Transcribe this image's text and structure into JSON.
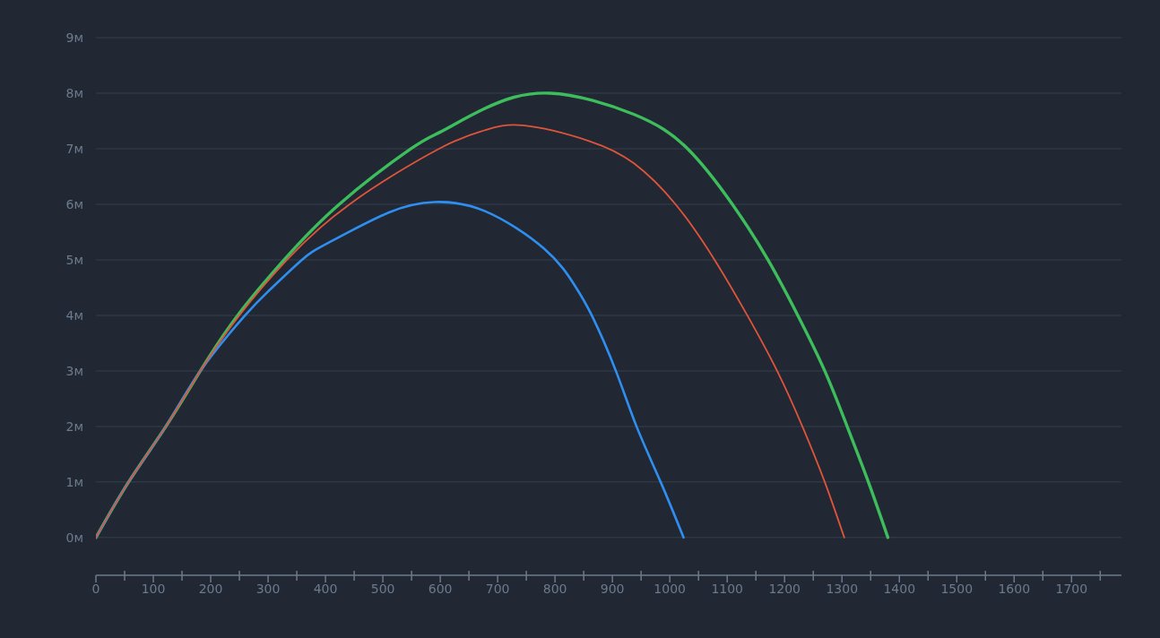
{
  "chart_data": {
    "type": "line",
    "xlim": [
      0,
      1787
    ],
    "xticks": [
      0,
      {
        "value": 50,
        "label": null
      },
      100,
      {
        "value": 150,
        "label": null
      },
      200,
      {
        "value": 250,
        "label": null
      },
      300,
      {
        "value": 350,
        "label": null
      },
      400,
      {
        "value": 450,
        "label": null
      },
      500,
      {
        "value": 550,
        "label": null
      },
      600,
      {
        "value": 650,
        "label": null
      },
      700,
      {
        "value": 750,
        "label": null
      },
      800,
      {
        "value": 850,
        "label": null
      },
      900,
      {
        "value": 950,
        "label": null
      },
      1000,
      {
        "value": 1050,
        "label": null
      },
      1100,
      {
        "value": 1150,
        "label": null
      },
      1200,
      {
        "value": 1250,
        "label": null
      },
      1300,
      {
        "value": 1350,
        "label": null
      },
      1400,
      {
        "value": 1450,
        "label": null
      },
      1500,
      {
        "value": 1550,
        "label": null
      },
      1600,
      {
        "value": 1650,
        "label": null
      },
      1700,
      {
        "value": 1750,
        "label": null
      }
    ],
    "ylim": [
      -0.68,
      9
    ],
    "yticks": [
      {
        "value": 0,
        "label": "0м"
      },
      {
        "value": 1,
        "label": "1м"
      },
      {
        "value": 2,
        "label": "2м"
      },
      {
        "value": 3,
        "label": "3м"
      },
      {
        "value": 4,
        "label": "4м"
      },
      {
        "value": 5,
        "label": "5м"
      },
      {
        "value": 6,
        "label": "6м"
      },
      {
        "value": 7,
        "label": "7м"
      },
      {
        "value": 8,
        "label": "8м"
      },
      {
        "value": 9,
        "label": "9м"
      }
    ],
    "grid": "y",
    "marker": "none",
    "line_style": "solid",
    "series": [
      {
        "color": "#3dbd5b",
        "x": [
          0,
          57,
          122,
          182,
          247,
          328,
          424,
          549,
          600,
          677,
          791,
          937,
          1031,
          1109,
          1171,
          1223,
          1270,
          1309,
          1346,
          1380
        ],
        "values": [
          0,
          1,
          2,
          3,
          4,
          5,
          6,
          7,
          7.3,
          7.72,
          8.0,
          7.62,
          7,
          6,
          5,
          4,
          3,
          2,
          1,
          0
        ]
      },
      {
        "color": "#2f8ff0",
        "x": [
          0,
          57,
          122,
          182,
          260,
          302,
          359,
          406,
          510,
          590,
          677,
          781,
          833,
          864,
          906,
          942,
          984,
          1024
        ],
        "values": [
          0,
          1,
          2,
          3,
          4,
          4.45,
          5,
          5.31,
          5.85,
          6.04,
          5.88,
          5.2,
          4.56,
          4,
          3,
          2,
          1,
          0
        ]
      },
      {
        "color": "#e0553a",
        "x": [
          0,
          57,
          122,
          182,
          250,
          333,
          442,
          598,
          677,
          744,
          859,
          937,
          1010,
          1078,
          1135,
          1187,
          1231,
          1270,
          1304
        ],
        "values": [
          0,
          1,
          2,
          3,
          4,
          5,
          6,
          7,
          7.33,
          7.42,
          7.14,
          6.74,
          6,
          5,
          4,
          3,
          2,
          1,
          0
        ]
      }
    ]
  }
}
